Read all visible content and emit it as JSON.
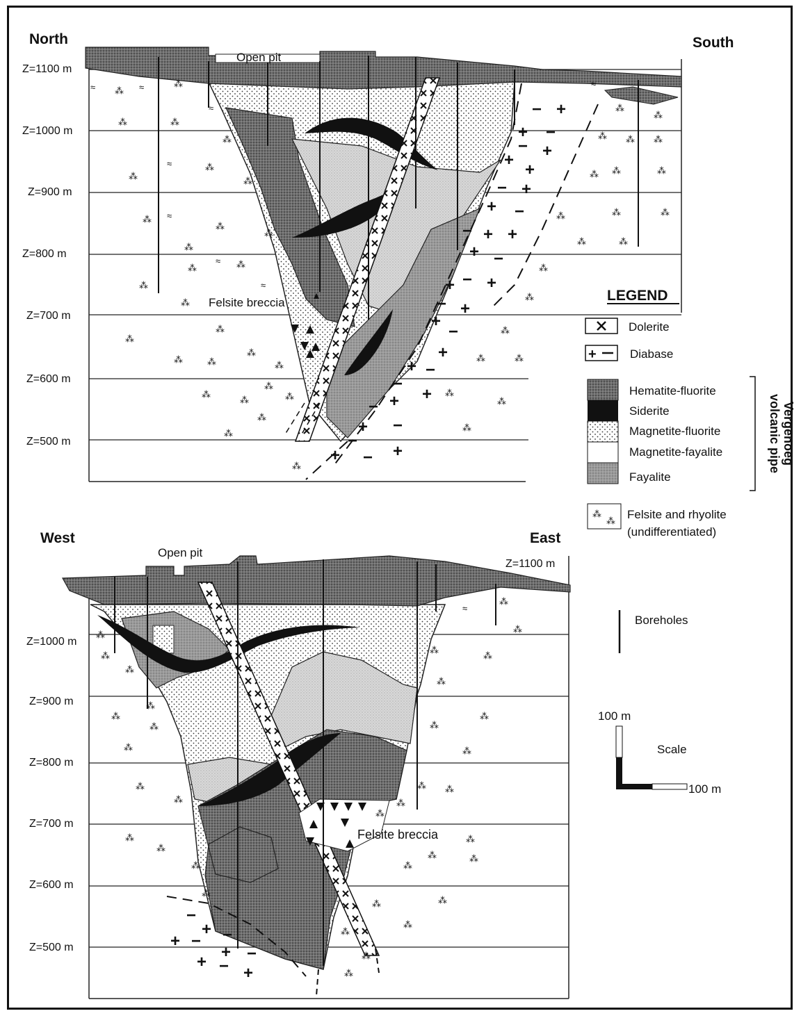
{
  "sections": {
    "top": {
      "left_dir": "North",
      "right_dir": "South",
      "open_pit": "Open pit",
      "breccia": "Felsite breccia",
      "levels": [
        "Z=1100 m",
        "Z=1000 m",
        "Z=900 m",
        "Z=800 m",
        "Z=700 m",
        "Z=600 m",
        "Z=500 m"
      ]
    },
    "bottom": {
      "left_dir": "West",
      "right_dir": "East",
      "open_pit": "Open pit",
      "breccia": "Felsite breccia",
      "top_level": "Z=1100 m",
      "levels": [
        "Z=1000 m",
        "Z=900 m",
        "Z=800 m",
        "Z=700 m",
        "Z=600 m",
        "Z=500 m"
      ]
    }
  },
  "legend": {
    "title": "LEGEND",
    "dolerite": "Dolerite",
    "diabase": "Diabase",
    "pipe_units": [
      "Hematite-fluorite",
      "Siderite",
      "Magnetite-fluorite",
      "Magnetite-fayalite",
      "Fayalite"
    ],
    "pipe_label_line1": "Vergenoeg",
    "pipe_label_line2": "volcanic pipe",
    "felsite_line1": "Felsite and rhyolite",
    "felsite_line2": "(undifferentiated)",
    "boreholes": "Boreholes",
    "scale": "Scale",
    "scale_v": "100 m",
    "scale_h": "100 m"
  },
  "colors": {
    "hematite": "#777777",
    "siderite": "#111111",
    "magnetite_fayalite": "#e2e2e2",
    "fayalite": "#9a9a9a",
    "cover": "#8a8a8a"
  }
}
